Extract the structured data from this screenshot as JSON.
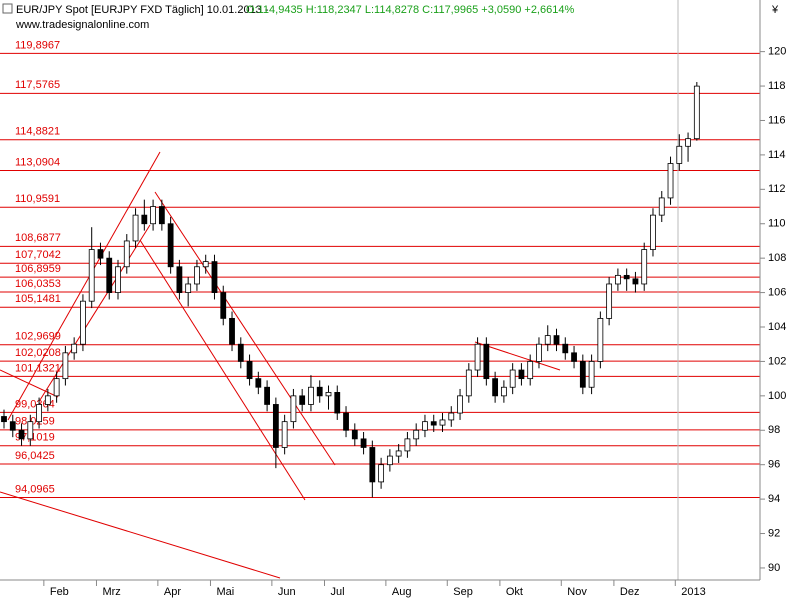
{
  "chart_data": {
    "type": "candlestick",
    "title": "EUR/JPY Spot [EURJPY FXD  Täglich] 10.01.2013 -",
    "subtitle": "O:114,9435 H:118,2347 L:114,8278 C:117,9965 +3,0590 +2,6614%",
    "source": "www.tradesignalonline.com",
    "currency": "¥",
    "up_color": "#ffffff",
    "down_color": "#000000",
    "level_color": "#e00000",
    "ylim": [
      89.3,
      123.0
    ],
    "yticks": [
      90,
      92,
      94,
      96,
      98,
      100,
      102,
      104,
      106,
      108,
      110,
      112,
      114,
      116,
      118,
      120
    ],
    "categories": [
      null,
      null,
      null,
      null,
      null,
      "Feb",
      null,
      null,
      null,
      null,
      null,
      "Mrz",
      null,
      null,
      null,
      null,
      null,
      null,
      "Apr",
      null,
      null,
      null,
      null,
      null,
      "Mai",
      null,
      null,
      null,
      null,
      null,
      null,
      "Jun",
      null,
      null,
      null,
      null,
      null,
      "Jul",
      null,
      null,
      null,
      null,
      null,
      null,
      "Aug",
      null,
      null,
      null,
      null,
      null,
      null,
      "Sep",
      null,
      null,
      null,
      null,
      null,
      "Okt",
      null,
      null,
      null,
      null,
      null,
      null,
      "Nov",
      null,
      null,
      null,
      null,
      null,
      "Dez",
      null,
      null,
      null,
      null,
      null,
      null,
      "2013",
      null,
      null
    ],
    "open": [
      98.8,
      98.5,
      98,
      97.5,
      98.5,
      99.5,
      100,
      101,
      102.5,
      103,
      105.5,
      108.5,
      108,
      106,
      107.5,
      109,
      110.5,
      110,
      111,
      110,
      107.5,
      106,
      106.5,
      107.5,
      107.8,
      106,
      104.5,
      103,
      102,
      101,
      100.5,
      99.5,
      97,
      98.5,
      100,
      99.5,
      100.5,
      100,
      100.2,
      99,
      98,
      97.5,
      97,
      95,
      96,
      96.5,
      96.8,
      97.5,
      98,
      98.5,
      98.3,
      98.6,
      99,
      100,
      101.5,
      103,
      101,
      100,
      100.5,
      101.5,
      101,
      102,
      103,
      103.5,
      103,
      102.5,
      102,
      100.5,
      102,
      104.5,
      106.5,
      107,
      106.8,
      106.5,
      108.5,
      110.5,
      111.5,
      113.5,
      114.5,
      114.9435
    ],
    "high": [
      99.2,
      98.9,
      98.4,
      98.9,
      99.9,
      100.4,
      101.4,
      102.9,
      103.4,
      105.9,
      109.8,
      108.9,
      108.4,
      107.9,
      109.4,
      110.9,
      111.4,
      111.4,
      111.4,
      110.4,
      107.9,
      106.9,
      107.9,
      108.2,
      108.2,
      106.4,
      104.9,
      103.4,
      102.4,
      101.4,
      100.9,
      99.9,
      98.9,
      100.4,
      100.4,
      101.2,
      100.9,
      100.6,
      100.6,
      99.4,
      98.4,
      97.9,
      97.4,
      96.4,
      96.9,
      97.2,
      97.9,
      98.4,
      98.9,
      98.9,
      99.0,
      99.4,
      100.4,
      101.9,
      103.4,
      103.4,
      101.4,
      100.9,
      101.9,
      101.9,
      102.4,
      103.4,
      104.1,
      103.9,
      103.4,
      102.9,
      102.4,
      102.4,
      104.9,
      106.9,
      107.4,
      107.4,
      107.2,
      108.9,
      110.9,
      111.9,
      113.9,
      115.2,
      115.3,
      118.2347
    ],
    "low": [
      98.1,
      97.6,
      97.1,
      97.1,
      98.1,
      99.1,
      99.6,
      100.6,
      102.1,
      102.6,
      105.1,
      107.6,
      105.6,
      105.6,
      107.1,
      108.6,
      109.6,
      109.6,
      109.6,
      107.1,
      105.6,
      105.2,
      106.1,
      107.1,
      105.6,
      104.1,
      102.6,
      101.6,
      100.6,
      100.1,
      99.1,
      95.8,
      96.6,
      98.1,
      99.1,
      99.1,
      99.6,
      99.2,
      98.6,
      97.6,
      97.1,
      96.6,
      94.1,
      94.6,
      95.6,
      96.1,
      96.4,
      97.1,
      97.6,
      97.9,
      97.9,
      98.2,
      98.6,
      99.6,
      101.1,
      100.6,
      99.6,
      99.6,
      100.1,
      100.6,
      100.6,
      101.6,
      102.6,
      102.6,
      102.1,
      101.6,
      100.1,
      100.1,
      101.6,
      104.1,
      106.1,
      106.1,
      106.0,
      106.1,
      108.1,
      110.1,
      111.1,
      113.1,
      113.6,
      114.8278
    ],
    "close": [
      98.5,
      98,
      97.5,
      98.5,
      99.5,
      100,
      101,
      102.5,
      103,
      105.5,
      108.5,
      108,
      106,
      107.5,
      109,
      110.5,
      110,
      111,
      110,
      107.5,
      106,
      106.5,
      107.5,
      107.8,
      106,
      104.5,
      103,
      102,
      101,
      100.5,
      99.5,
      97,
      98.5,
      100,
      99.5,
      100.5,
      100,
      100.2,
      99,
      98,
      97.5,
      97,
      95,
      96,
      96.5,
      96.8,
      97.5,
      98,
      98.5,
      98.3,
      98.6,
      99,
      100,
      101.5,
      103,
      101,
      100,
      100.5,
      101.5,
      101,
      102,
      103,
      103.5,
      103,
      102.5,
      102,
      100.5,
      102,
      104.5,
      106.5,
      107,
      106.8,
      106.5,
      108.5,
      110.5,
      111.5,
      113.5,
      114.5,
      114.9435,
      117.9965
    ],
    "levels": [
      {
        "value": 119.8967,
        "label": "119,8967"
      },
      {
        "value": 117.5765,
        "label": "117,5765"
      },
      {
        "value": 114.8821,
        "label": "114,8821"
      },
      {
        "value": 113.0904,
        "label": "113,0904"
      },
      {
        "value": 110.9591,
        "label": "110,9591"
      },
      {
        "value": 108.6877,
        "label": "108,6877"
      },
      {
        "value": 107.7042,
        "label": "107,7042"
      },
      {
        "value": 106.8959,
        "label": "106,8959"
      },
      {
        "value": 106.0353,
        "label": "106,0353"
      },
      {
        "value": 105.1481,
        "label": "105,1481"
      },
      {
        "value": 102.9699,
        "label": "102,9699"
      },
      {
        "value": 102.0208,
        "label": "102,0208"
      },
      {
        "value": 101.1321,
        "label": "101,1321"
      },
      {
        "value": 99.0364,
        "label": "99,0364"
      },
      {
        "value": 98.0259,
        "label": "98,0259"
      },
      {
        "value": 97.1019,
        "label": "97,1019"
      },
      {
        "value": 96.0425,
        "label": "96,0425"
      },
      {
        "value": 94.0965,
        "label": "94,0965"
      }
    ]
  }
}
